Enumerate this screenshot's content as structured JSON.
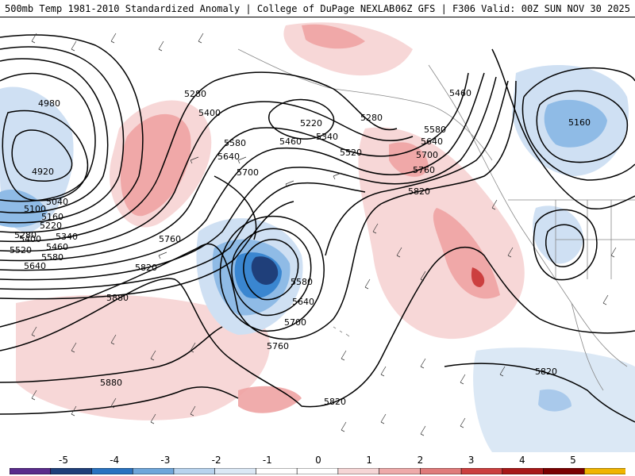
{
  "header": {
    "title_left": "500mb Temp 1981-2010 Standardized Anomaly | College of DuPage NEXLAB",
    "title_right": "06Z GFS | F306 Valid: 00Z SUN NOV 30 2025"
  },
  "contours": [
    {
      "label": "4980"
    },
    {
      "label": "4920"
    },
    {
      "label": "5040"
    },
    {
      "label": "5100"
    },
    {
      "label": "5160"
    },
    {
      "label": "5220"
    },
    {
      "label": "5280"
    },
    {
      "label": "5340"
    },
    {
      "label": "5400"
    },
    {
      "label": "5460"
    },
    {
      "label": "5520"
    },
    {
      "label": "5580"
    },
    {
      "label": "5640"
    },
    {
      "label": "5700"
    },
    {
      "label": "5760"
    },
    {
      "label": "5820"
    },
    {
      "label": "5880"
    }
  ],
  "map_labels": {
    "l4980": "4980",
    "l4920": "4920",
    "l5040": "5040",
    "l5100": "5100",
    "l5160w": "5160",
    "l5220w": "5220",
    "l5280w": "5280",
    "l5340w": "5340",
    "l5400w": "5400",
    "l5460w": "5460",
    "l5520w": "5520",
    "l5580w": "5580",
    "l5640w": "5640",
    "l5280n": "5280",
    "l5400n": "5400",
    "l5580n": "5580",
    "l5640n": "5640",
    "l5700n": "5700",
    "l5220c": "5220",
    "l5460c": "5460",
    "l5340c": "5340",
    "l5520c": "5520",
    "l5280c": "5280",
    "l5760": "5760",
    "l5820w": "5820",
    "l5880w": "5880",
    "l5880s": "5880",
    "l5580low": "5580",
    "l5640low": "5640",
    "l5700low": "5700",
    "l5760low": "5760",
    "l5820s": "5820",
    "l5460e": "5460",
    "l5580e": "5580",
    "l5640e": "5640",
    "l5700e": "5700",
    "l5760e": "5760",
    "l5820e": "5820",
    "l5160e": "5160",
    "l5820se": "5820"
  },
  "colorbar": {
    "ticks": [
      "-5",
      "-4",
      "-3",
      "-2",
      "-1",
      "0",
      "1",
      "2",
      "3",
      "4",
      "5"
    ],
    "colors": [
      "#5a2c8c",
      "#1f3f7a",
      "#2a72c0",
      "#6fa6da",
      "#b8d3ee",
      "#dbe8f5",
      "#ffffff",
      "#ffffff",
      "#f6d6d6",
      "#eeaaaa",
      "#e07b7b",
      "#cc3f3f",
      "#a81818",
      "#7a0000",
      "#f0b400"
    ]
  }
}
